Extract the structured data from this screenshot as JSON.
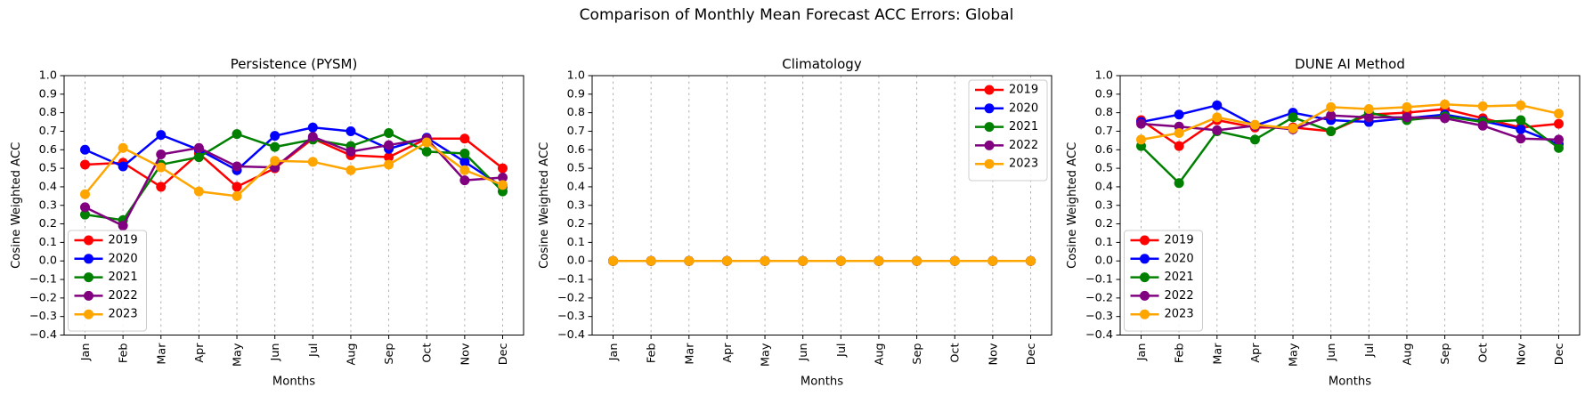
{
  "title": "Comparison of Monthly Mean Forecast ACC Errors: Global",
  "months": [
    "Jan",
    "Feb",
    "Mar",
    "Apr",
    "May",
    "Jun",
    "Jul",
    "Aug",
    "Sep",
    "Oct",
    "Nov",
    "Dec"
  ],
  "xlabel": "Months",
  "ylabel": "Cosine Weighted ACC",
  "ylim": [
    -0.4,
    1.0
  ],
  "ytick_labels": [
    "1.0",
    "0.9",
    "0.8",
    "0.7",
    "0.6",
    "0.5",
    "0.4",
    "0.3",
    "0.2",
    "0.1",
    "0.0",
    "−0.1",
    "−0.2",
    "−0.3",
    "−0.4"
  ],
  "grid": {
    "axis": "x",
    "style": "dashed",
    "color": "#a8a8a8"
  },
  "legend_years": [
    "2019",
    "2020",
    "2021",
    "2022",
    "2023"
  ],
  "series_colors": {
    "2019": "#ff0000",
    "2020": "#0000ff",
    "2021": "#008000",
    "2022": "#800080",
    "2023": "#ffa500"
  },
  "chart_data": [
    {
      "type": "line",
      "title": "Persistence (PYSM)",
      "legend_position": "lower-left",
      "series": [
        {
          "name": "2019",
          "color": "#ff0000",
          "values": [
            0.52,
            0.53,
            0.4,
            0.58,
            0.4,
            0.5,
            0.66,
            0.57,
            0.56,
            0.66,
            0.66,
            0.5
          ]
        },
        {
          "name": "2020",
          "color": "#0000ff",
          "values": [
            0.6,
            0.51,
            0.68,
            0.6,
            0.49,
            0.675,
            0.72,
            0.7,
            0.605,
            0.665,
            0.535,
            0.4
          ]
        },
        {
          "name": "2021",
          "color": "#008000",
          "values": [
            0.25,
            0.22,
            0.52,
            0.56,
            0.685,
            0.615,
            0.655,
            0.62,
            0.69,
            0.59,
            0.58,
            0.375
          ]
        },
        {
          "name": "2022",
          "color": "#800080",
          "values": [
            0.29,
            0.19,
            0.575,
            0.61,
            0.51,
            0.505,
            0.67,
            0.59,
            0.625,
            0.66,
            0.435,
            0.45
          ]
        },
        {
          "name": "2023",
          "color": "#ffa500",
          "values": [
            0.36,
            0.61,
            0.505,
            0.375,
            0.35,
            0.54,
            0.535,
            0.49,
            0.52,
            0.64,
            0.49,
            0.41
          ]
        }
      ]
    },
    {
      "type": "line",
      "title": "Climatology",
      "legend_position": "upper-right",
      "series": [
        {
          "name": "2019",
          "color": "#ff0000",
          "values": [
            0,
            0,
            0,
            0,
            0,
            0,
            0,
            0,
            0,
            0,
            0,
            0
          ]
        },
        {
          "name": "2020",
          "color": "#0000ff",
          "values": [
            0,
            0,
            0,
            0,
            0,
            0,
            0,
            0,
            0,
            0,
            0,
            0
          ]
        },
        {
          "name": "2021",
          "color": "#008000",
          "values": [
            0,
            0,
            0,
            0,
            0,
            0,
            0,
            0,
            0,
            0,
            0,
            0
          ]
        },
        {
          "name": "2022",
          "color": "#800080",
          "values": [
            0,
            0,
            0,
            0,
            0,
            0,
            0,
            0,
            0,
            0,
            0,
            0
          ]
        },
        {
          "name": "2023",
          "color": "#ffa500",
          "values": [
            0,
            0,
            0,
            0,
            0,
            0,
            0,
            0,
            0,
            0,
            0,
            0
          ]
        }
      ]
    },
    {
      "type": "line",
      "title": "DUNE AI Method",
      "legend_position": "lower-left",
      "series": [
        {
          "name": "2019",
          "color": "#ff0000",
          "values": [
            0.76,
            0.62,
            0.76,
            0.72,
            0.72,
            0.7,
            0.79,
            0.8,
            0.82,
            0.77,
            0.72,
            0.74
          ]
        },
        {
          "name": "2020",
          "color": "#0000ff",
          "values": [
            0.75,
            0.79,
            0.84,
            0.73,
            0.8,
            0.76,
            0.75,
            0.77,
            0.79,
            0.755,
            0.71,
            0.63
          ]
        },
        {
          "name": "2021",
          "color": "#008000",
          "values": [
            0.62,
            0.42,
            0.7,
            0.655,
            0.775,
            0.7,
            0.8,
            0.76,
            0.78,
            0.75,
            0.76,
            0.61
          ]
        },
        {
          "name": "2022",
          "color": "#800080",
          "values": [
            0.74,
            0.725,
            0.705,
            0.73,
            0.71,
            0.785,
            0.775,
            0.775,
            0.77,
            0.73,
            0.66,
            0.655
          ]
        },
        {
          "name": "2023",
          "color": "#ffa500",
          "values": [
            0.655,
            0.69,
            0.775,
            0.735,
            0.715,
            0.83,
            0.82,
            0.83,
            0.845,
            0.835,
            0.84,
            0.795
          ]
        }
      ]
    }
  ]
}
